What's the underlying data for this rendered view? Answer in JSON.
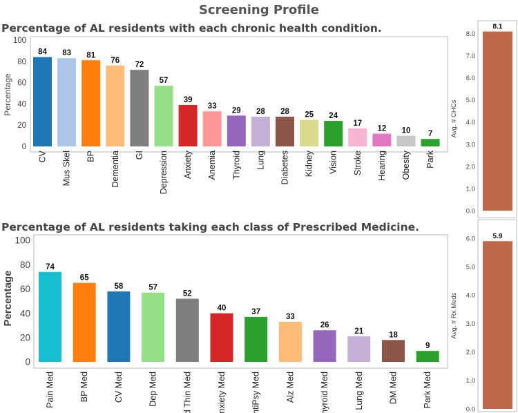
{
  "page_title": "Screening Profile",
  "chart_data": [
    {
      "id": "chc",
      "type": "bar",
      "title": "Percentage of AL residents with each chronic health condition.",
      "xlabel": "",
      "ylabel": "Percentage",
      "ylim": [
        0,
        100
      ],
      "yticks": [
        0,
        20,
        40,
        60,
        80,
        100
      ],
      "categories": [
        "CV",
        "Mus Skel",
        "BP",
        "Dementia",
        "GI",
        "Depression",
        "Anxiety",
        "Anemia",
        "Thyroid",
        "Lung",
        "Diabetes",
        "Kidney",
        "Vision",
        "Stroke",
        "Hearing",
        "Obesity",
        "Park"
      ],
      "values": [
        84,
        83,
        81,
        76,
        72,
        57,
        39,
        33,
        29,
        28,
        28,
        25,
        24,
        17,
        12,
        10,
        7
      ],
      "colors": [
        "#1f77b4",
        "#aec7e8",
        "#ff7f0e",
        "#ffbb78",
        "#7f7f7f",
        "#98df8a",
        "#d62728",
        "#ff9896",
        "#9467bd",
        "#c5b0d5",
        "#8c564b",
        "#dbdb8d",
        "#2ca02c",
        "#f7b6d2",
        "#e377c2",
        "#c7c7c7",
        "#2ca02c"
      ],
      "grid": false
    },
    {
      "id": "chc_avg",
      "type": "bar",
      "title": "",
      "ylabel": "Avg. # CHCs",
      "ylim": [
        0,
        8.4
      ],
      "yticks": [
        "0.0",
        "1.0",
        "2.0",
        "3.0",
        "4.0",
        "5.0",
        "6.0",
        "7.0",
        "8.0"
      ],
      "categories": [
        ""
      ],
      "values": [
        8.1
      ],
      "value_labels": [
        "8.1"
      ],
      "colors": [
        "#c0684a"
      ]
    },
    {
      "id": "rx",
      "type": "bar",
      "title": "Percentage of AL residents taking each class of Prescribed Medicine.",
      "xlabel": "",
      "ylabel": "Percentage",
      "ylim": [
        0,
        100
      ],
      "yticks": [
        0,
        20,
        40,
        60,
        80,
        100
      ],
      "categories": [
        "Pain Med",
        "BP Med",
        "CV Med",
        "Dep Med",
        "Bld Thin Med",
        "Anxiety Med",
        "AntiPsy Med",
        "Alz Med",
        "Thyroid Med",
        "Lung Med",
        "DM Med",
        "Park Med"
      ],
      "values": [
        74,
        65,
        58,
        57,
        52,
        40,
        37,
        33,
        26,
        21,
        18,
        9
      ],
      "colors": [
        "#17becf",
        "#ff7f0e",
        "#1f77b4",
        "#98df8a",
        "#7f7f7f",
        "#d62728",
        "#2ca02c",
        "#ffbb78",
        "#9467bd",
        "#c5b0d5",
        "#8c564b",
        "#2ca02c"
      ],
      "grid": false
    },
    {
      "id": "rx_avg",
      "type": "bar",
      "title": "",
      "ylabel": "Avg. # Rx Meds",
      "ylim": [
        0,
        6.1
      ],
      "yticks": [
        "0.0",
        "1.0",
        "2.0",
        "3.0",
        "4.0",
        "5.0",
        "6.0"
      ],
      "categories": [
        ""
      ],
      "values": [
        5.9
      ],
      "value_labels": [
        "5.9"
      ],
      "colors": [
        "#c0684a"
      ]
    }
  ]
}
